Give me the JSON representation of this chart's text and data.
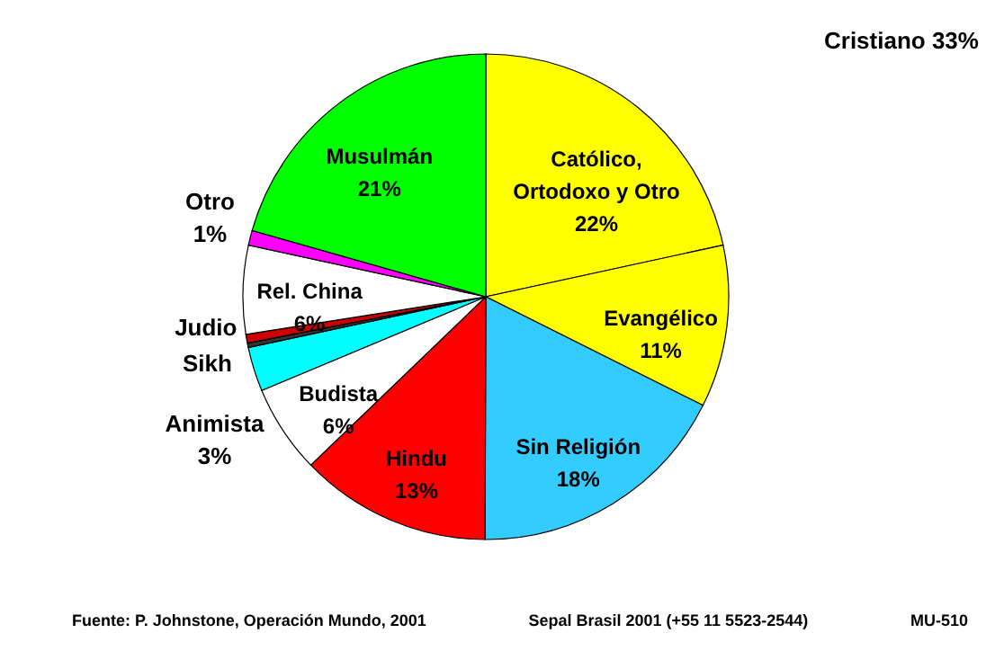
{
  "chart_data": {
    "type": "pie",
    "categories": [
      "Católico, Ortodoxo y Otro",
      "Evangélico",
      "Sin Religión",
      "Hindu",
      "Budista",
      "Animista",
      "Sikh",
      "Judio",
      "Rel. China",
      "Otro",
      "Musulmán"
    ],
    "values": [
      22,
      11,
      18,
      13,
      6,
      3,
      0.3,
      0.6,
      6,
      1,
      21
    ],
    "value_labels": [
      "22%",
      "11%",
      "18%",
      "13%",
      "6%",
      "3%",
      null,
      null,
      "6%",
      "1%",
      "21%"
    ],
    "colors": [
      "#ffff00",
      "#ffff00",
      "#33ccff",
      "#ff0000",
      "#ffffff",
      "#00ffff",
      "#333333",
      "#cc0000",
      "#ffffff",
      "#ff00ff",
      "#00ff00"
    ],
    "annotations": [
      "Cristiano 33%",
      "Fuente: P. Johnstone, Operación Mundo, 2001",
      "Sepal Brasil 2001 (+55 11 5523-2544)",
      "MU-510"
    ]
  }
}
